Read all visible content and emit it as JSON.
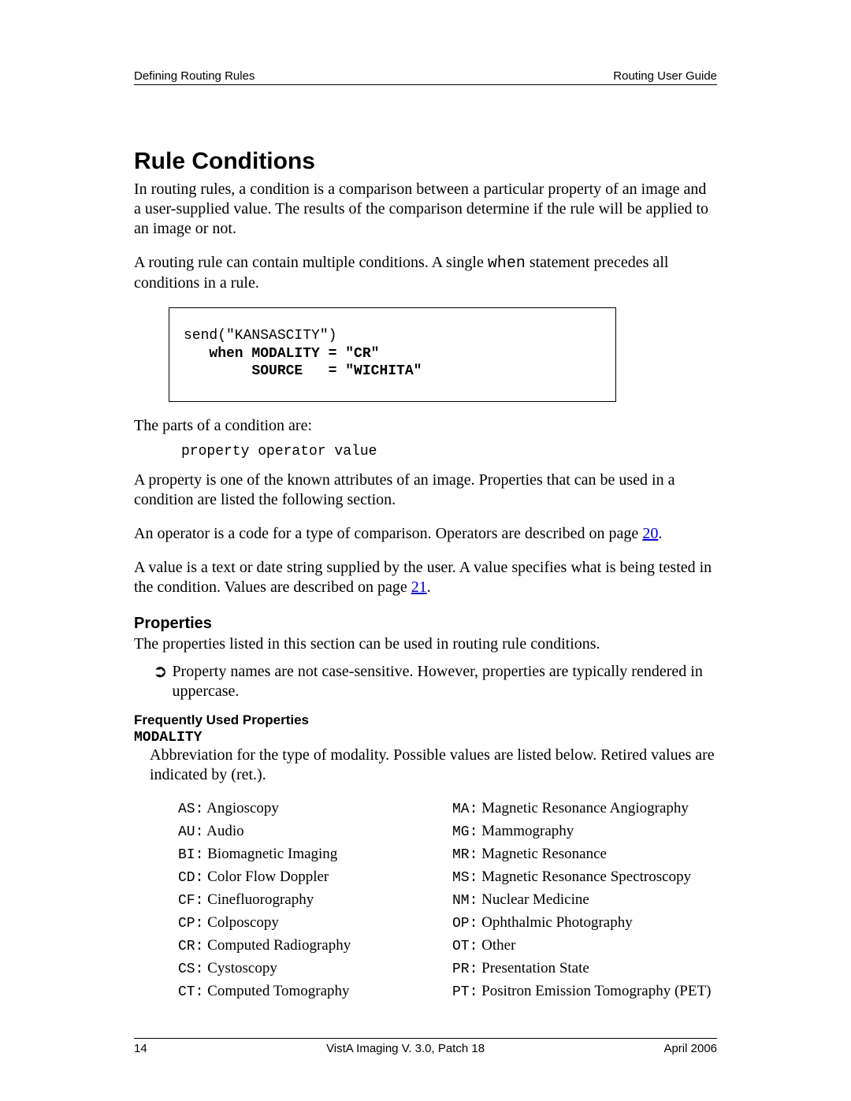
{
  "header": {
    "left": "Defining Routing Rules",
    "right": "Routing User Guide"
  },
  "footer": {
    "page": "14",
    "center": "VistA Imaging V. 3.0, Patch 18",
    "right": "April 2006"
  },
  "section_title": "Rule Conditions",
  "p1": "In routing rules, a condition is a comparison between a particular property of an image and a user-supplied value. The results of the comparison determine if the rule will be applied to an image or not.",
  "p2a": "A routing rule can contain multiple conditions. A single ",
  "p2_code": "when",
  "p2b": " statement precedes all conditions in a rule.",
  "codebox": {
    "line1": "send(\"KANSASCITY\")",
    "line2": "   when MODALITY = \"CR\"",
    "line3": "        SOURCE   = \"WICHITA\""
  },
  "p3": "The parts of a condition are:",
  "code_line": "property operator value",
  "p4": "A property is one of the known attributes of an image. Properties that can be used in a condition are listed the following section.",
  "p5a": "An operator is a code for a type of comparison. Operators are described on page ",
  "p5_link": "20",
  "p5b": ".",
  "p6a": "A value is a text or date string supplied by the user. A value specifies what is being tested in the condition. Values are described on page ",
  "p6_link": "21",
  "p6b": ".",
  "sub_properties": "Properties",
  "p7": "The properties listed in this section can be used in routing rule conditions.",
  "note_text": "Property names are not case-sensitive. However, properties are typically rendered in uppercase.",
  "freq_title": "Frequently Used Properties",
  "prop_name": "MODALITY",
  "prop_desc": "Abbreviation for the type of modality. Possible values are listed below.  Retired values are indicated by (ret.).",
  "modalities_left": [
    {
      "code": "AS",
      "label": "Angioscopy"
    },
    {
      "code": "AU",
      "label": "Audio"
    },
    {
      "code": "BI",
      "label": "Biomagnetic Imaging"
    },
    {
      "code": "CD",
      "label": "Color Flow Doppler"
    },
    {
      "code": "CF",
      "label": "Cinefluorography"
    },
    {
      "code": "CP",
      "label": "Colposcopy"
    },
    {
      "code": "CR",
      "label": "Computed Radiography"
    },
    {
      "code": "CS",
      "label": "Cystoscopy"
    },
    {
      "code": "CT",
      "label": "Computed Tomography"
    }
  ],
  "modalities_right": [
    {
      "code": "MA",
      "label": "Magnetic Resonance Angiography"
    },
    {
      "code": "MG",
      "label": "Mammography"
    },
    {
      "code": "MR",
      "label": "Magnetic Resonance"
    },
    {
      "code": "MS",
      "label": "Magnetic Resonance Spectroscopy"
    },
    {
      "code": "NM",
      "label": "Nuclear Medicine"
    },
    {
      "code": "OP",
      "label": "Ophthalmic Photography"
    },
    {
      "code": "OT",
      "label": "Other"
    },
    {
      "code": "PR",
      "label": "Presentation State"
    },
    {
      "code": "PT",
      "label": "Positron Emission Tomography (PET)"
    }
  ]
}
